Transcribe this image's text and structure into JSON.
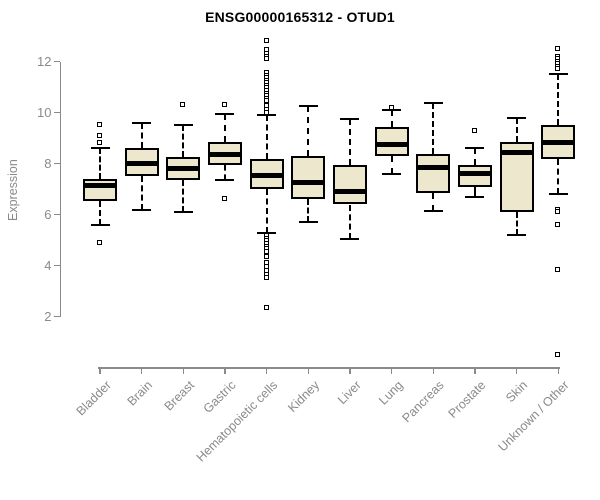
{
  "chart_data": {
    "type": "boxplot",
    "title": "ENSG00000165312 - OTUD1",
    "ylabel": "Expression",
    "y_axis": {
      "min": 2,
      "max": 12,
      "ticks": [
        2,
        4,
        6,
        8,
        10,
        12
      ]
    },
    "grid": false,
    "categories": [
      "Bladder",
      "Brain",
      "Breast",
      "Gastric",
      "Hematopoietic cells",
      "Kidney",
      "Liver",
      "Lung",
      "Pancreas",
      "Prostate",
      "Skin",
      "Unknown / Other"
    ],
    "series": [
      {
        "name": "Bladder",
        "whisker_low": 5.6,
        "q1": 6.55,
        "median": 7.15,
        "q3": 7.4,
        "whisker_high": 8.6,
        "outliers": [
          9.5,
          9.1,
          8.8,
          4.9
        ]
      },
      {
        "name": "Brain",
        "whisker_low": 6.2,
        "q1": 7.5,
        "median": 8.0,
        "q3": 8.6,
        "whisker_high": 9.6,
        "outliers": []
      },
      {
        "name": "Breast",
        "whisker_low": 6.1,
        "q1": 7.35,
        "median": 7.8,
        "q3": 8.25,
        "whisker_high": 9.5,
        "outliers": [
          10.3
        ]
      },
      {
        "name": "Gastric",
        "whisker_low": 7.35,
        "q1": 7.95,
        "median": 8.35,
        "q3": 8.85,
        "whisker_high": 9.95,
        "outliers": [
          10.3,
          6.6
        ]
      },
      {
        "name": "Hematopoietic cells",
        "whisker_low": 5.3,
        "q1": 7.0,
        "median": 7.55,
        "q3": 8.2,
        "whisker_high": 9.9,
        "outliers": [
          12.8,
          12.45,
          12.3,
          12.2,
          12.1,
          11.55,
          11.45,
          11.35,
          11.25,
          11.15,
          11.05,
          10.95,
          10.85,
          10.75,
          10.65,
          10.55,
          10.45,
          10.25,
          10.1,
          10.0,
          5.15,
          5.05,
          4.95,
          4.85,
          4.75,
          4.65,
          4.55,
          4.35,
          4.1,
          3.95,
          3.8,
          3.65,
          3.5,
          2.35
        ]
      },
      {
        "name": "Kidney",
        "whisker_low": 5.7,
        "q1": 6.6,
        "median": 7.25,
        "q3": 8.3,
        "whisker_high": 10.25,
        "outliers": []
      },
      {
        "name": "Liver",
        "whisker_low": 5.05,
        "q1": 6.4,
        "median": 6.9,
        "q3": 7.95,
        "whisker_high": 9.75,
        "outliers": []
      },
      {
        "name": "Lung",
        "whisker_low": 7.6,
        "q1": 8.3,
        "median": 8.75,
        "q3": 9.45,
        "whisker_high": 10.1,
        "outliers": [
          10.2
        ]
      },
      {
        "name": "Pancreas",
        "whisker_low": 6.15,
        "q1": 6.85,
        "median": 7.85,
        "q3": 8.4,
        "whisker_high": 10.4,
        "outliers": []
      },
      {
        "name": "Prostate",
        "whisker_low": 6.7,
        "q1": 7.1,
        "median": 7.6,
        "q3": 7.95,
        "whisker_high": 8.6,
        "outliers": [
          9.3
        ]
      },
      {
        "name": "Skin",
        "whisker_low": 5.2,
        "q1": 6.1,
        "median": 8.45,
        "q3": 8.85,
        "whisker_high": 9.8,
        "outliers": []
      },
      {
        "name": "Unknown / Other",
        "whisker_low": 6.8,
        "q1": 8.2,
        "median": 8.85,
        "q3": 9.5,
        "whisker_high": 11.5,
        "outliers": [
          12.5,
          12.2,
          12.1,
          12.0,
          11.9,
          11.8,
          11.7,
          6.2,
          6.1,
          5.6,
          3.85,
          0.5
        ]
      }
    ],
    "colors": {
      "background": "#FFFFFF",
      "box_fill": "#EDE8CD",
      "box_border": "#000000",
      "median": "#000000",
      "whisker": "#000000",
      "axis": "#8A8A8A",
      "label_text": "#8A8A8A",
      "title_text": "#000000"
    }
  }
}
